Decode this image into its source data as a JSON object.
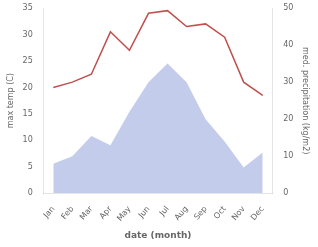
{
  "chart_data": {
    "type": "line",
    "categories": [
      "Jan",
      "Feb",
      "Mar",
      "Apr",
      "May",
      "Jun",
      "Jul",
      "Aug",
      "Sep",
      "Oct",
      "Nov",
      "Dec"
    ],
    "series": [
      {
        "type": "line",
        "color": "#c0504d",
        "values": [
          20.0,
          21.0,
          22.5,
          30.5,
          27.0,
          34.0,
          34.5,
          31.5,
          32.0,
          29.5,
          21.0,
          18.5
        ]
      },
      {
        "type": "area",
        "color": "#b8c4e8",
        "axis": "y2",
        "values": [
          8.0,
          10.0,
          15.5,
          13.0,
          22.0,
          30.0,
          35.0,
          30.0,
          20.0,
          14.0,
          7.0,
          11.0
        ]
      }
    ],
    "xlabel": "date (month)",
    "ylabel": "max temp (C)",
    "y2label": "med. precipitation (kg/m2)",
    "ylim": [
      0,
      35
    ],
    "yticks": [
      0,
      5,
      10,
      15,
      20,
      25,
      30,
      35
    ],
    "y2lim": [
      0,
      50
    ],
    "y2ticks": [
      0,
      10,
      20,
      30,
      40,
      50
    ],
    "grid": false
  }
}
